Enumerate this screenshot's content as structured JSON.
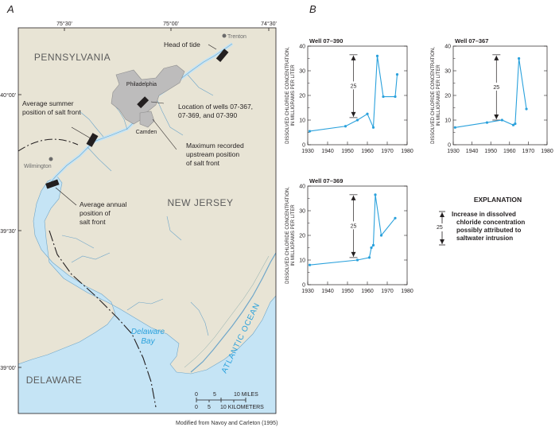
{
  "panels": {
    "a": "A",
    "b": "B"
  },
  "map": {
    "lon_labels": [
      "75°30'",
      "75°00'",
      "74°30'"
    ],
    "lat_labels": [
      "40°00'",
      "39°30'",
      "39°00'"
    ],
    "states": {
      "pa": "PENNSYLVANIA",
      "nj": "NEW JERSEY",
      "de": "DELAWARE"
    },
    "cities": {
      "trenton": "Trenton",
      "philadelphia": "Philadelphia",
      "camden": "Camden",
      "wilmington": "Wilmington"
    },
    "water": {
      "bay1": "Delaware",
      "bay2": "Bay",
      "ocean": "ATLANTIC OCEAN"
    },
    "annotations": {
      "head_of_tide": "Head of tide",
      "summer_1": "Average summer",
      "summer_2": "position of salt front",
      "wells_1": "Location of wells 07-367,",
      "wells_2": "07-369, and 07-390",
      "max_1": "Maximum recorded",
      "max_2": "upstream position",
      "max_3": "of salt front",
      "annual_1": "Average annual",
      "annual_2": "position of",
      "annual_3": "salt front"
    },
    "scale": {
      "miles_ticks": [
        "0",
        "5",
        "10 MILES"
      ],
      "km_ticks": [
        "0",
        "5",
        "10 KILOMETERS"
      ]
    },
    "credit": "Modified from Navoy and Carleton (1995)",
    "colors": {
      "land": "#e8e4d5",
      "water": "#c5e4f5",
      "urban": "#bdbcbc",
      "river_line": "#6fa6c9"
    }
  },
  "chart_data": [
    {
      "type": "line",
      "title": "Well 07–390",
      "ylabel_1": "DISSOLVED CHLORIDE CONCENTRATION,",
      "ylabel_2": "IN MILLIGRAMS PER LITER",
      "xlim": [
        1930,
        1980
      ],
      "ylim": [
        0,
        40
      ],
      "xticks": [
        "1930",
        "1940",
        "1950",
        "1960",
        "1970",
        "1980"
      ],
      "yticks": [
        "0",
        "10",
        "20",
        "30",
        "40"
      ],
      "x": [
        1931,
        1949,
        1955,
        1960,
        1963,
        1965,
        1968,
        1974,
        1975
      ],
      "y": [
        5.5,
        7.5,
        10,
        12.5,
        7,
        36,
        19.5,
        19.5,
        28.5
      ],
      "increase": {
        "from": 11,
        "to": 36.5,
        "label": "25"
      },
      "color": "#2aa1dc"
    },
    {
      "type": "line",
      "title": "Well 07–367",
      "ylabel_1": "DISSOLVED CHLORIDE CONCENTRATION,",
      "ylabel_2": "IN MILLIGRAMS PER LITER",
      "xlim": [
        1930,
        1980
      ],
      "ylim": [
        0,
        40
      ],
      "xticks": [
        "1930",
        "1940",
        "1950",
        "1960",
        "1970",
        "1980"
      ],
      "yticks": [
        "0",
        "10",
        "20",
        "30",
        "40"
      ],
      "x": [
        1931,
        1948,
        1956,
        1962,
        1963,
        1965,
        1969
      ],
      "y": [
        7,
        9,
        10,
        8,
        8.5,
        35,
        14.5
      ],
      "increase": {
        "from": 10,
        "to": 36.5,
        "label": "25"
      },
      "color": "#2aa1dc"
    },
    {
      "type": "line",
      "title": "Well 07–369",
      "ylabel_1": "DISSOLVED CHLORIDE CONCENTRATION,",
      "ylabel_2": "IN MILLIGRAMS PER LITER",
      "xlim": [
        1930,
        1980
      ],
      "ylim": [
        0,
        40
      ],
      "xticks": [
        "1930",
        "1940",
        "1950",
        "1960",
        "1970",
        "1980"
      ],
      "yticks": [
        "0",
        "10",
        "20",
        "30",
        "40"
      ],
      "x": [
        1931,
        1955,
        1961,
        1962,
        1963,
        1964,
        1967,
        1974
      ],
      "y": [
        8,
        10,
        11,
        15,
        16,
        36.5,
        20,
        27
      ],
      "increase": {
        "from": 11,
        "to": 36.5,
        "label": "25"
      },
      "color": "#2aa1dc"
    }
  ],
  "explanation": {
    "title": "EXPLANATION",
    "symbol_label": "25",
    "line_1": "Increase in dissolved",
    "line_2": "chloride concentration",
    "line_3": "possibly attributed to",
    "line_4": "saltwater intrusion"
  }
}
